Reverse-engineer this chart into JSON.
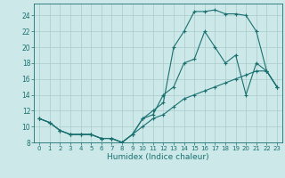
{
  "xlabel": "Humidex (Indice chaleur)",
  "background_color": "#cde8e8",
  "grid_color": "#aacccc",
  "line_color": "#1a7070",
  "xlim": [
    -0.5,
    23.5
  ],
  "ylim": [
    8,
    25.5
  ],
  "xticks": [
    0,
    1,
    2,
    3,
    4,
    5,
    6,
    7,
    8,
    9,
    10,
    11,
    12,
    13,
    14,
    15,
    16,
    17,
    18,
    19,
    20,
    21,
    22,
    23
  ],
  "yticks": [
    8,
    10,
    12,
    14,
    16,
    18,
    20,
    22,
    24
  ],
  "line1_x": [
    0,
    1,
    2,
    3,
    4,
    5,
    6,
    7,
    8,
    9,
    10,
    11,
    12,
    13,
    14,
    15,
    16,
    17,
    18,
    19,
    20,
    21,
    22,
    23
  ],
  "line1_y": [
    11,
    10.5,
    9.5,
    9,
    9,
    9,
    8.5,
    8.5,
    8,
    9,
    11,
    11.5,
    14,
    15,
    18,
    18.5,
    22,
    20,
    18,
    19,
    14,
    18,
    17,
    15
  ],
  "line2_x": [
    0,
    1,
    2,
    3,
    4,
    5,
    6,
    7,
    8,
    9,
    10,
    11,
    12,
    13,
    14,
    15,
    16,
    17,
    18,
    19,
    20,
    21,
    22,
    23
  ],
  "line2_y": [
    11,
    10.5,
    9.5,
    9,
    9,
    9,
    8.5,
    8.5,
    8,
    9,
    11,
    12,
    13,
    20,
    22,
    24.5,
    24.5,
    24.7,
    24.2,
    24.2,
    24,
    22,
    17,
    15
  ],
  "line3_x": [
    0,
    1,
    2,
    3,
    4,
    5,
    6,
    7,
    8,
    9,
    10,
    11,
    12,
    13,
    14,
    15,
    16,
    17,
    18,
    19,
    20,
    21,
    22,
    23
  ],
  "line3_y": [
    11,
    10.5,
    9.5,
    9,
    9,
    9,
    8.5,
    8.5,
    8,
    9,
    10,
    11,
    11.5,
    12.5,
    13.5,
    14,
    14.5,
    15,
    15.5,
    16,
    16.5,
    17,
    17,
    15
  ]
}
